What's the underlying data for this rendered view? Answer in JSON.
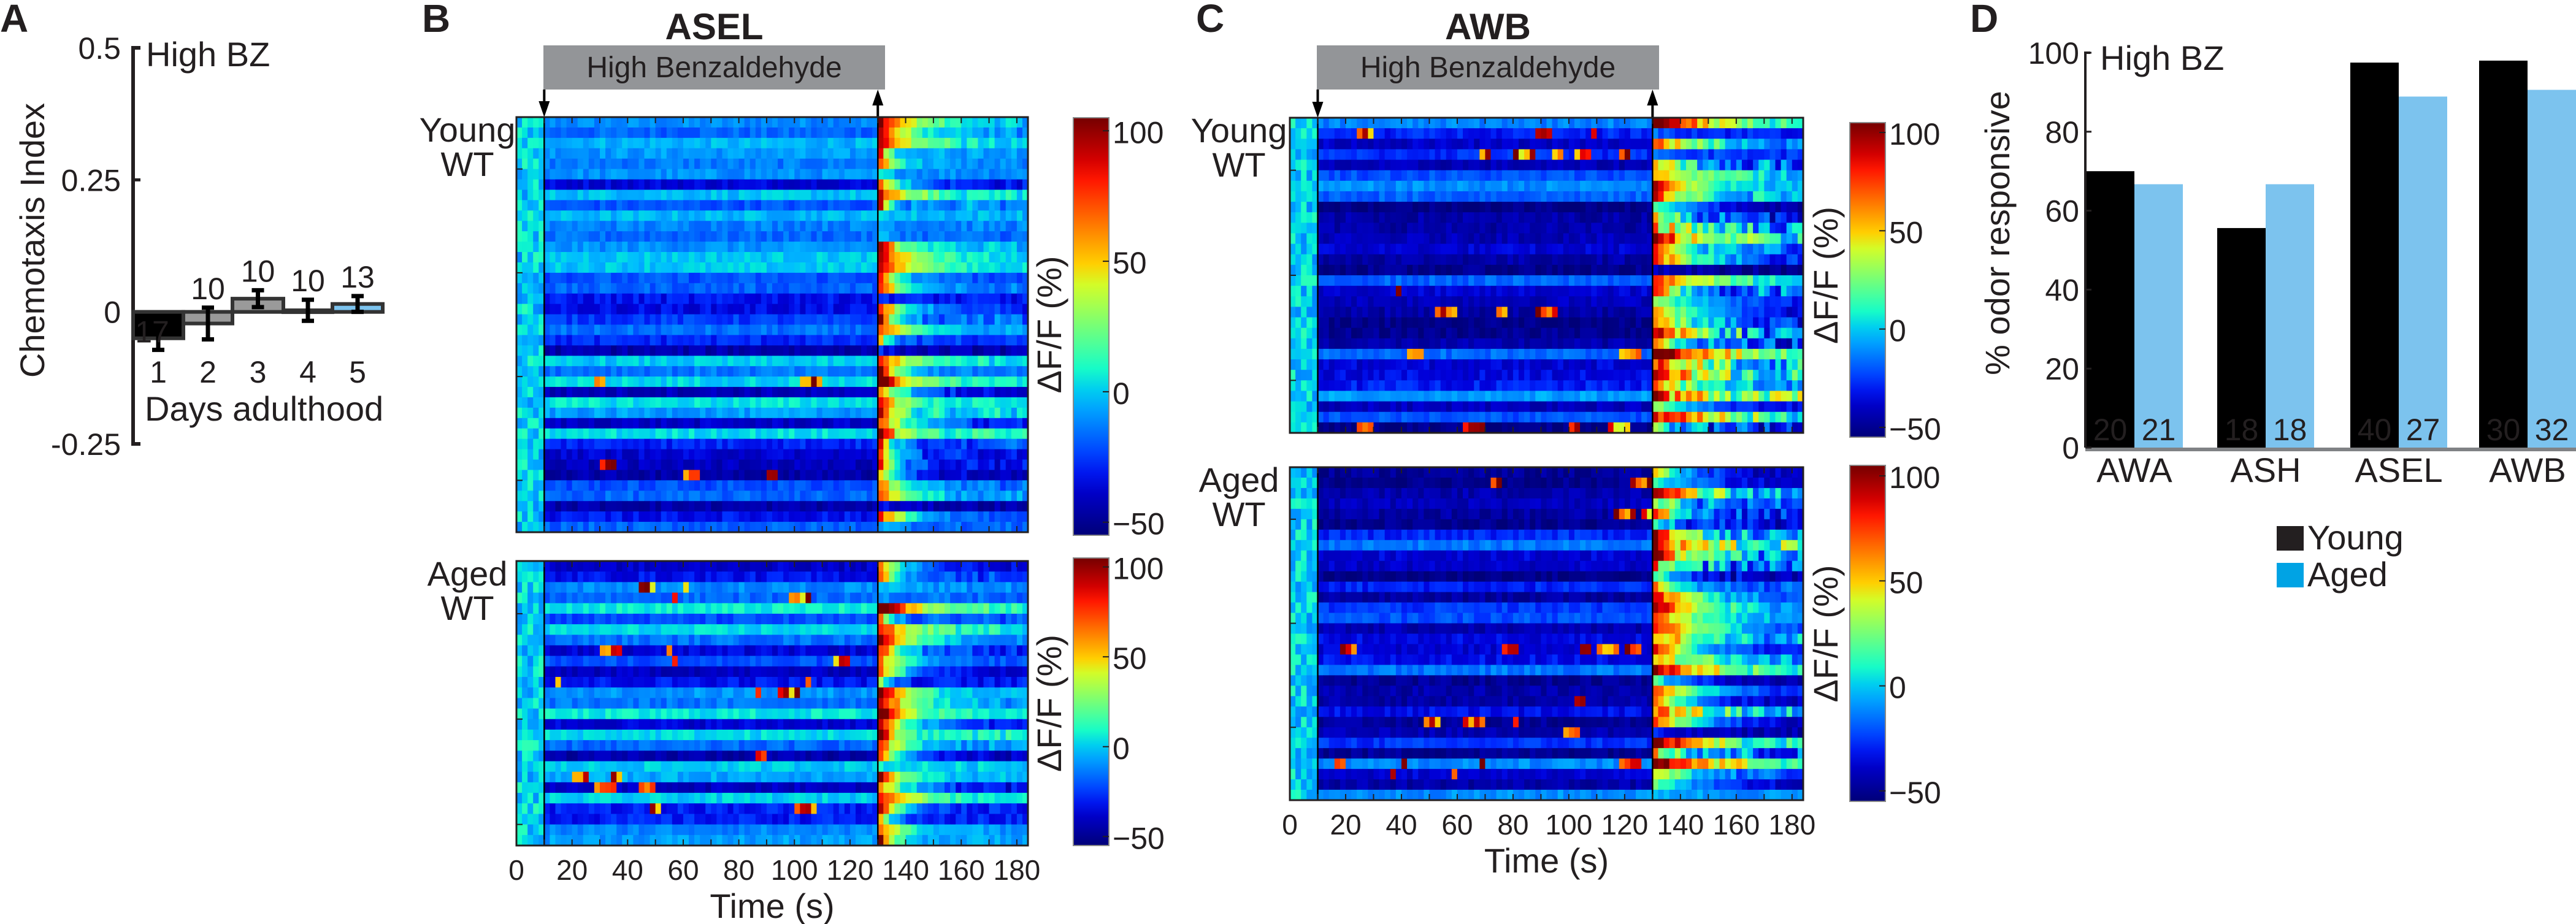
{
  "panels": {
    "a": "A",
    "b": "B",
    "c": "C",
    "d": "D"
  },
  "chart_data": [
    {
      "panel": "A",
      "type": "bar",
      "annotation": "High BZ",
      "categories": [
        "1",
        "2",
        "3",
        "4",
        "5"
      ],
      "values": [
        -0.05,
        -0.022,
        0.025,
        0.003,
        0.015
      ],
      "errors": [
        0.022,
        0.03,
        0.016,
        0.02,
        0.015
      ],
      "n_labels": [
        "17",
        "10",
        "10",
        "10",
        "13"
      ],
      "colors": [
        "#000000",
        "#9a9a9a",
        "#9a9a9a",
        "#9a9a9a",
        "#7cc3ee"
      ],
      "xlabel": "Days adulthood",
      "ylabel": "Chemotaxis Index",
      "yticks": [
        {
          "value": 0.5,
          "label": "0.5"
        },
        {
          "value": 0.25,
          "label": "0.25"
        },
        {
          "value": 0,
          "label": "0"
        },
        {
          "value": -0.25,
          "label": "-0.25"
        }
      ],
      "ylim": [
        -0.25,
        0.5
      ]
    },
    {
      "panel": "B",
      "type": "heatmap",
      "title": "ASEL",
      "stimulus": "High Benzaldehyde",
      "stimulus_on_s": 10,
      "stimulus_off_s": 130,
      "xlabel": "Time (s)",
      "xticks": [
        "0",
        "20",
        "40",
        "60",
        "80",
        "100",
        "120",
        "140",
        "160",
        "180"
      ],
      "xlim": [
        0,
        184
      ],
      "colorbar_label": "ΔF/F (%)",
      "colorbar_ticks": [
        {
          "value": 100,
          "label": "100"
        },
        {
          "value": 50,
          "label": "50"
        },
        {
          "value": 0,
          "label": "0"
        },
        {
          "value": -50,
          "label": "−50"
        }
      ],
      "clim": [
        -55,
        105
      ],
      "colormap": "jet",
      "groups": [
        {
          "line1": "Young",
          "line2": "WT",
          "rows": 40
        },
        {
          "line1": "Aged",
          "line2": "WT",
          "rows": 27
        }
      ]
    },
    {
      "panel": "C",
      "type": "heatmap",
      "title": "AWB",
      "stimulus": "High Benzaldehyde",
      "stimulus_on_s": 10,
      "stimulus_off_s": 130,
      "xlabel": "Time (s)",
      "xticks": [
        "0",
        "20",
        "40",
        "60",
        "80",
        "100",
        "120",
        "140",
        "160",
        "180"
      ],
      "xlim": [
        0,
        184
      ],
      "colorbar_label": "ΔF/F (%)",
      "colorbar_ticks": [
        {
          "value": 100,
          "label": "100"
        },
        {
          "value": 50,
          "label": "50"
        },
        {
          "value": 0,
          "label": "0"
        },
        {
          "value": -50,
          "label": "−50"
        }
      ],
      "clim": [
        -55,
        105
      ],
      "colormap": "jet",
      "groups": [
        {
          "line1": "Young",
          "line2": "WT",
          "rows": 30
        },
        {
          "line1": "Aged",
          "line2": "WT",
          "rows": 32
        }
      ]
    },
    {
      "panel": "D",
      "type": "bar",
      "annotation": "High BZ",
      "categories": [
        "AWA",
        "ASH",
        "ASEL",
        "AWB"
      ],
      "series": [
        {
          "name": "Young",
          "color": "#000000",
          "values": [
            70,
            55.6,
            97.5,
            98
          ],
          "n_labels": [
            "20",
            "18",
            "40",
            "30"
          ]
        },
        {
          "name": "Aged",
          "color": "#7cc3ee",
          "values": [
            66.7,
            66.7,
            88.9,
            90.6
          ],
          "n_labels": [
            "21",
            "18",
            "27",
            "32"
          ]
        }
      ],
      "legend_colors": [
        "#231f20",
        "#00a3e4"
      ],
      "ylabel": "% odor responsive",
      "yticks": [
        "0",
        "20",
        "40",
        "60",
        "80",
        "100"
      ],
      "ylim": [
        0,
        100
      ],
      "legend": "bottom"
    }
  ]
}
